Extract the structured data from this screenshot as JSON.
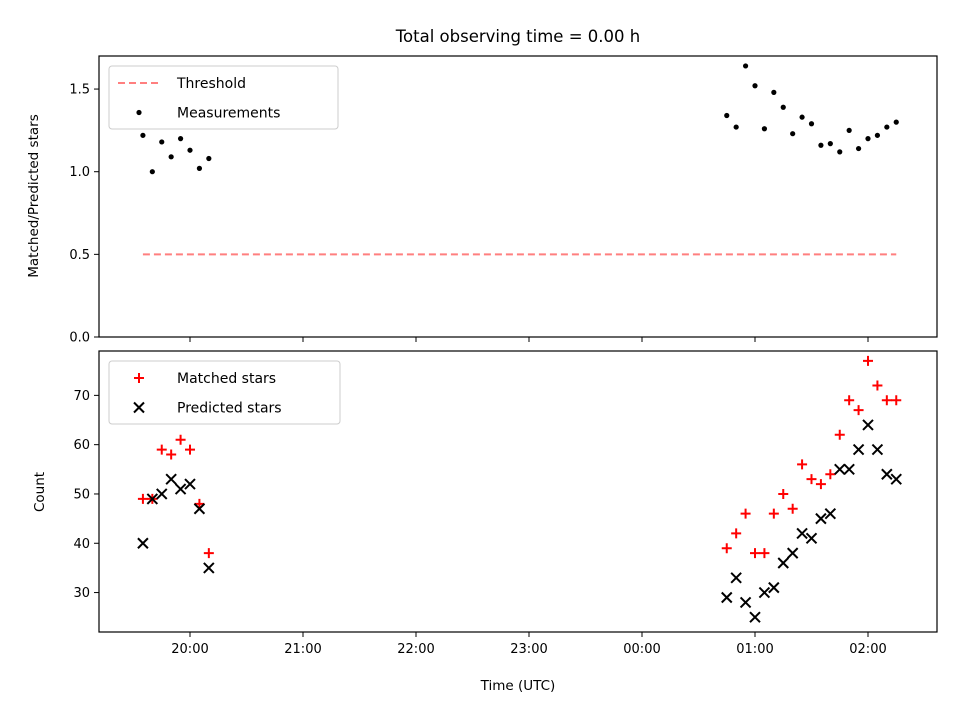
{
  "chart_data": [
    {
      "type": "scatter",
      "title": "Total observing time = 0.00 h",
      "xlabel": "",
      "ylabel": "Matched/Predicted stars",
      "ylim": [
        0.0,
        1.7
      ],
      "yticks": [
        "0.0",
        "0.5",
        "1.0",
        "1.5"
      ],
      "ytick_values": [
        0.0,
        0.5,
        1.0,
        1.5
      ],
      "legend_placement": "upper-left",
      "threshold": {
        "name": "Threshold",
        "color": "#ff7f7f",
        "style": "dashed",
        "x": [
          "19:35",
          "02:15"
        ],
        "y": 0.5
      },
      "series": [
        {
          "name": "Measurements",
          "marker": "dot",
          "color": "#000000",
          "x": [
            "19:35",
            "19:40",
            "19:45",
            "19:50",
            "19:55",
            "20:00",
            "20:05",
            "20:10",
            "00:45",
            "00:50",
            "00:55",
            "01:00",
            "01:05",
            "01:10",
            "01:15",
            "01:20",
            "01:25",
            "01:30",
            "01:35",
            "01:40",
            "01:45",
            "01:50",
            "01:55",
            "02:00",
            "02:05",
            "02:10",
            "02:15"
          ],
          "y": [
            1.22,
            1.0,
            1.18,
            1.09,
            1.2,
            1.13,
            1.02,
            1.08,
            1.34,
            1.27,
            1.64,
            1.52,
            1.26,
            1.48,
            1.39,
            1.23,
            1.33,
            1.29,
            1.16,
            1.17,
            1.12,
            1.25,
            1.14,
            1.2,
            1.22,
            1.27,
            1.3
          ]
        }
      ]
    },
    {
      "type": "scatter",
      "title": "",
      "xlabel": "Time (UTC)",
      "ylabel": "Count",
      "ylim": [
        22,
        79
      ],
      "yticks": [
        "30",
        "40",
        "50",
        "60",
        "70"
      ],
      "ytick_values": [
        30,
        40,
        50,
        60,
        70
      ],
      "xticks": [
        "20:00",
        "21:00",
        "22:00",
        "23:00",
        "00:00",
        "01:00",
        "02:00"
      ],
      "legend_placement": "upper-left",
      "series": [
        {
          "name": "Matched stars",
          "marker": "plus",
          "color": "#ff0000",
          "x": [
            "19:35",
            "19:40",
            "19:45",
            "19:50",
            "19:55",
            "20:00",
            "20:05",
            "20:10",
            "00:45",
            "00:50",
            "00:55",
            "01:00",
            "01:05",
            "01:10",
            "01:15",
            "01:20",
            "01:25",
            "01:30",
            "01:35",
            "01:40",
            "01:45",
            "01:50",
            "01:55",
            "02:00",
            "02:05",
            "02:10",
            "02:15"
          ],
          "y": [
            49,
            49,
            59,
            58,
            61,
            59,
            48,
            38,
            39,
            42,
            46,
            38,
            38,
            46,
            50,
            47,
            56,
            53,
            52,
            54,
            62,
            69,
            67,
            77,
            72,
            69,
            69
          ]
        },
        {
          "name": "Predicted stars",
          "marker": "x",
          "color": "#000000",
          "x": [
            "19:35",
            "19:40",
            "19:45",
            "19:50",
            "19:55",
            "20:00",
            "20:05",
            "20:10",
            "00:45",
            "00:50",
            "00:55",
            "01:00",
            "01:05",
            "01:10",
            "01:15",
            "01:20",
            "01:25",
            "01:30",
            "01:35",
            "01:40",
            "01:45",
            "01:50",
            "01:55",
            "02:00",
            "02:05",
            "02:10",
            "02:15"
          ],
          "y": [
            40,
            49,
            50,
            53,
            51,
            52,
            47,
            35,
            29,
            33,
            28,
            25,
            30,
            31,
            36,
            38,
            42,
            41,
            45,
            46,
            55,
            55,
            59,
            64,
            59,
            54,
            53
          ]
        }
      ]
    }
  ]
}
